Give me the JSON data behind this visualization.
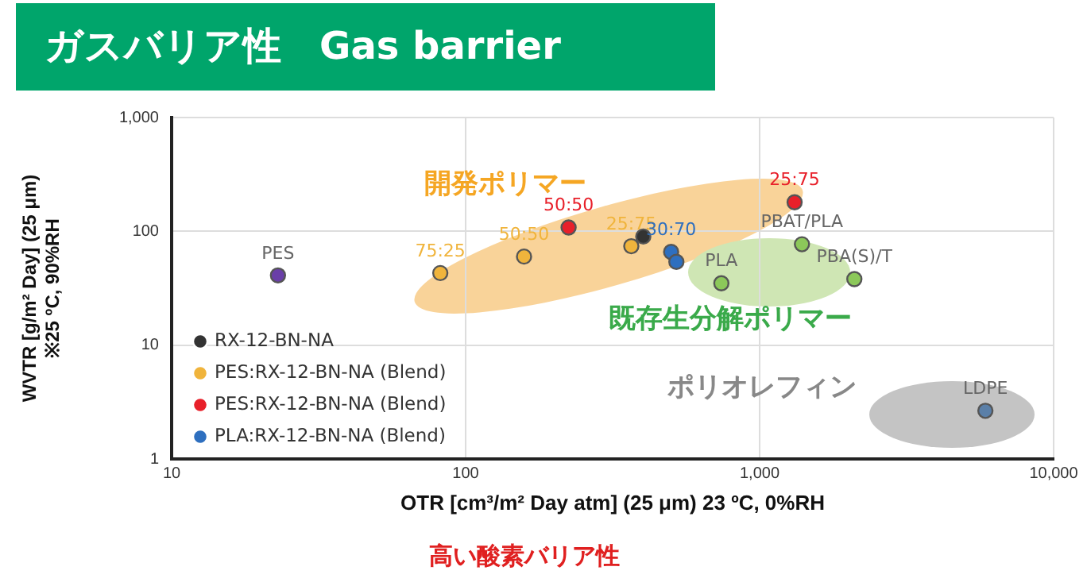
{
  "chart_data": {
    "type": "scatter",
    "title": "ガスバリア性　Gas barrier",
    "xlabel": "OTR [cm³/m² Day atm] (25 μm) 23 ºC, 0%RH",
    "ylabel": "WVTR [g/m² Day] (25 μm)\n※25 ºC, 90%RH",
    "log": "xy",
    "grid": true,
    "legend": "bottom left",
    "marker": "circle",
    "xlim": [
      10,
      10000
    ],
    "ylim": [
      1,
      1000
    ],
    "xticks": [
      10,
      100,
      {
        "value": 1000,
        "label": "1,000"
      },
      {
        "value": 10000,
        "label": "10,000"
      }
    ],
    "yticks": [
      1,
      10,
      100,
      {
        "value": 1000,
        "label": "1,000"
      }
    ],
    "series": [
      {
        "name": "RX-12-BN-NA",
        "color": "#333333",
        "x": [
          402
        ],
        "values": [
          90
        ]
      },
      {
        "name": "PES:RX-12-BN-NA (Blend)",
        "color": "#f0b43c",
        "x": [
          82,
          158,
          366
        ],
        "values": [
          43,
          60,
          74
        ]
      },
      {
        "name": "PES:RX-12-BN-NA (Blend)",
        "color": "#e8202a",
        "x": [
          224,
          1315
        ],
        "values": [
          108,
          180
        ]
      },
      {
        "name": "PLA:RX-12-BN-NA (Blend)",
        "color": "#2e6fbf",
        "x": [
          500,
          521
        ],
        "values": [
          66,
          54
        ]
      },
      {
        "color": "#6a3fa8",
        "x": [
          23
        ],
        "values": [
          41
        ]
      },
      {
        "color": "#8cc85a",
        "x": [
          741,
          1393,
          2100
        ],
        "values": [
          35,
          77,
          38
        ]
      },
      {
        "color": "#5a7fa8",
        "x": [
          5860
        ],
        "values": [
          2.65
        ]
      }
    ],
    "annotations": [
      {
        "text": "PES",
        "x": 23,
        "y": 41
      },
      {
        "text": "75:25",
        "x": 82,
        "y": 43
      },
      {
        "text": "50:50",
        "x": 158,
        "y": 60
      },
      {
        "text": "25:75",
        "x": 366,
        "y": 74
      },
      {
        "text": "50:50",
        "x": 224,
        "y": 108
      },
      {
        "text": "25:75",
        "x": 1315,
        "y": 180
      },
      {
        "text": "30:70",
        "x": 500,
        "y": 66
      },
      {
        "text": "PLA",
        "x": 741,
        "y": 35
      },
      {
        "text": "PBAT/PLA",
        "x": 1393,
        "y": 77
      },
      {
        "text": "PBA(S)/T",
        "x": 2100,
        "y": 38
      },
      {
        "text": "LDPE",
        "x": 5860,
        "y": 2.65
      },
      "開発ポリマー",
      "既存生分解ポリマー",
      "ポリオレフィン",
      "高い酸素バリア性"
    ]
  }
}
